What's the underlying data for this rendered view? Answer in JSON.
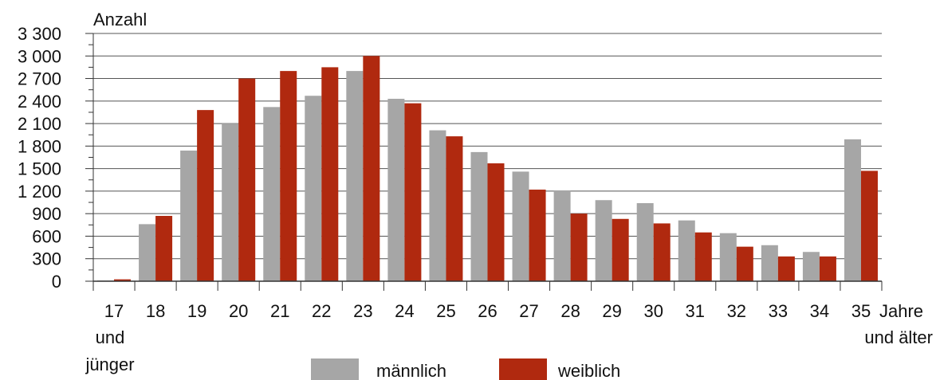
{
  "chart_data": {
    "type": "bar",
    "ylabel": "Anzahl",
    "xlabel": "",
    "ylim": [
      0,
      3300
    ],
    "y_ticks": [
      0,
      300,
      600,
      900,
      1200,
      1500,
      1800,
      2100,
      2400,
      2700,
      3000,
      3300
    ],
    "y_tick_labels": [
      "0",
      "300",
      "600",
      "900",
      "1 200",
      "1 500",
      "1 800",
      "2 100",
      "2 400",
      "2 700",
      "3 000",
      "3 300"
    ],
    "grid": true,
    "legend_position": "bottom",
    "categories": [
      "17",
      "18",
      "19",
      "20",
      "21",
      "22",
      "23",
      "24",
      "25",
      "26",
      "27",
      "28",
      "29",
      "30",
      "31",
      "32",
      "33",
      "34",
      "35"
    ],
    "category_sublabels": {
      "first": [
        "und",
        "jünger"
      ],
      "last": [
        "Jahre",
        "und älter"
      ]
    },
    "series": [
      {
        "name": "männlich",
        "color": "#a6a6a6",
        "values": [
          10,
          760,
          1740,
          2100,
          2320,
          2470,
          2800,
          2430,
          2010,
          1720,
          1460,
          1210,
          1080,
          1040,
          810,
          640,
          480,
          390,
          1890
        ]
      },
      {
        "name": "weiblich",
        "color": "#b0290f",
        "values": [
          25,
          870,
          2280,
          2700,
          2800,
          2850,
          3000,
          2370,
          1930,
          1570,
          1220,
          900,
          830,
          770,
          650,
          460,
          330,
          330,
          1470
        ]
      }
    ]
  }
}
